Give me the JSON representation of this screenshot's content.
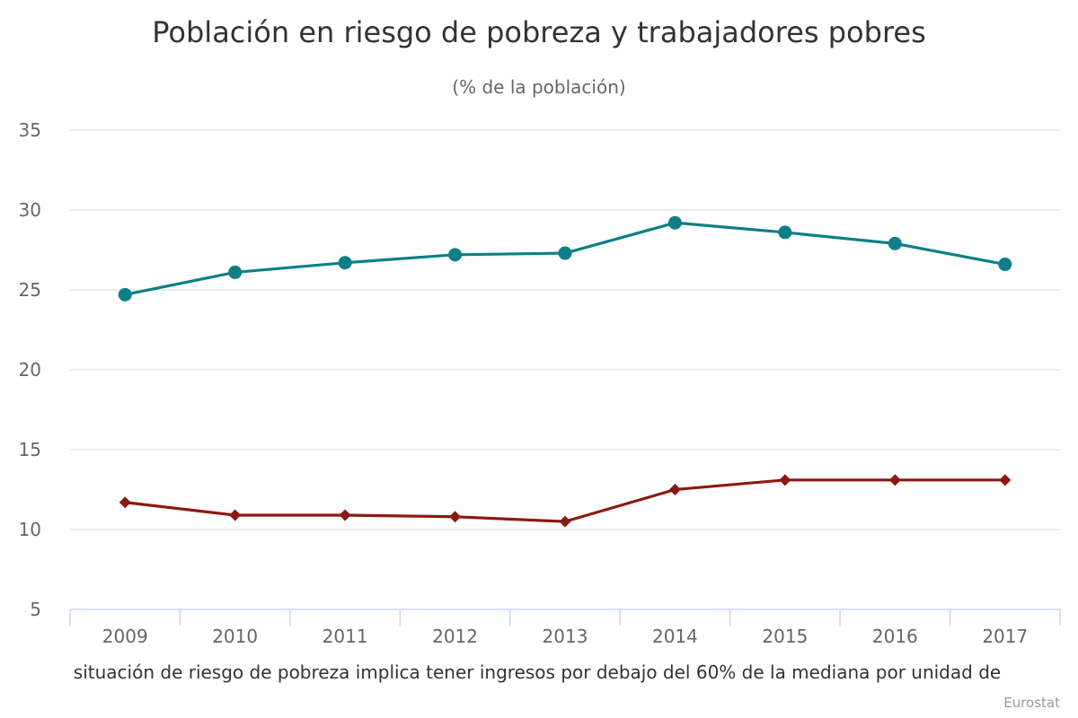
{
  "chart_data": {
    "type": "line",
    "title": "Población en riesgo de pobreza y trabajadores pobres",
    "subtitle": "(% de la población)",
    "xlabel": "",
    "ylabel": "",
    "categories": [
      "2009",
      "2010",
      "2011",
      "2012",
      "2013",
      "2014",
      "2015",
      "2016",
      "2017"
    ],
    "ylim": [
      5,
      35
    ],
    "yticks": [
      5,
      10,
      15,
      20,
      25,
      30,
      35
    ],
    "grid": true,
    "legend": "none",
    "series": [
      {
        "values": [
          24.7,
          26.1,
          26.7,
          27.2,
          27.3,
          29.2,
          28.6,
          27.9,
          26.6
        ],
        "color": "#0e7f86",
        "marker": "circle"
      },
      {
        "values": [
          11.7,
          10.9,
          10.9,
          10.8,
          10.5,
          12.5,
          13.1,
          13.1,
          13.1
        ],
        "color": "#8b1a10",
        "marker": "diamond"
      }
    ],
    "caption": "situación de riesgo de pobreza implica tener ingresos por debajo del 60% de la mediana por unidad de",
    "credit": "Eurostat"
  }
}
